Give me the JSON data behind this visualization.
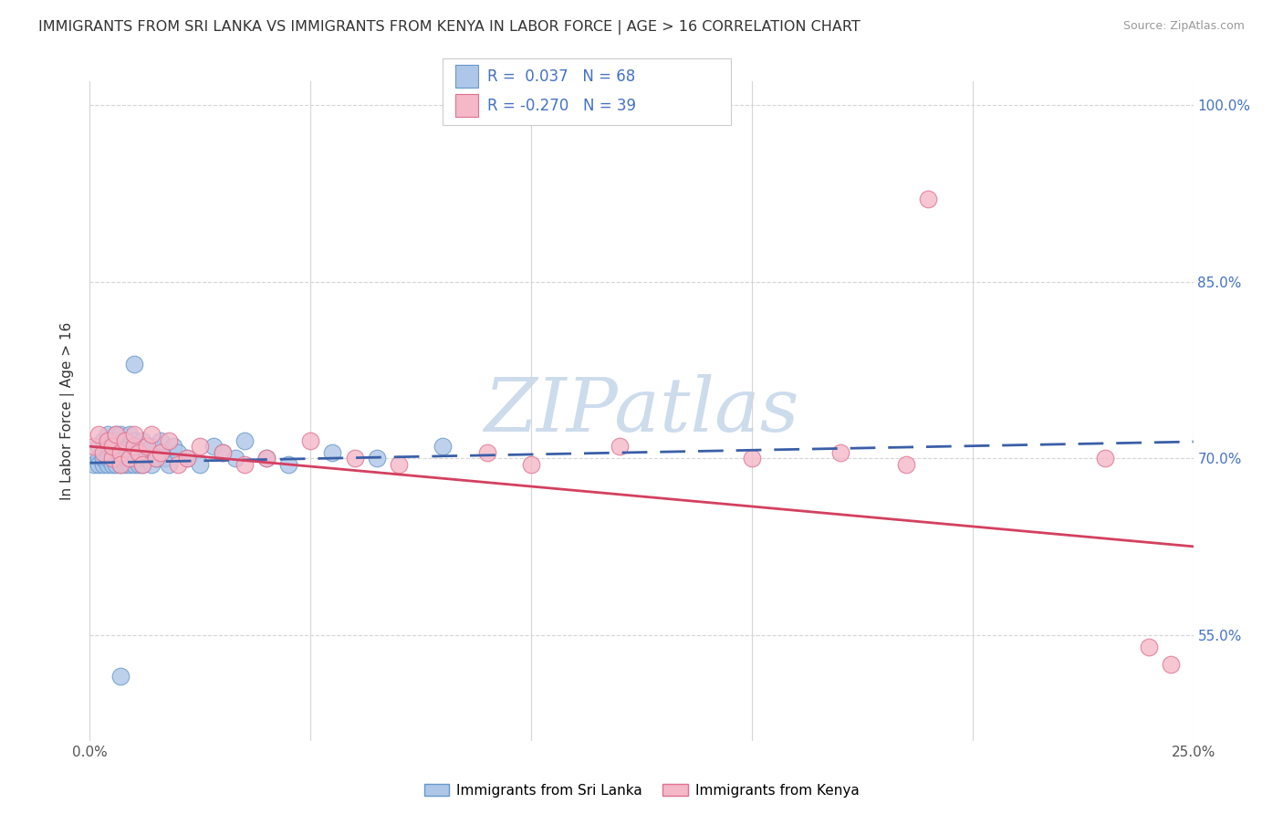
{
  "title": "IMMIGRANTS FROM SRI LANKA VS IMMIGRANTS FROM KENYA IN LABOR FORCE | AGE > 16 CORRELATION CHART",
  "source": "Source: ZipAtlas.com",
  "ylabel": "In Labor Force | Age > 16",
  "watermark": "ZIPatlas",
  "sri_lanka_R": 0.037,
  "sri_lanka_N": 68,
  "kenya_R": -0.27,
  "kenya_N": 39,
  "xlim": [
    0.0,
    0.25
  ],
  "ylim": [
    0.46,
    1.02
  ],
  "ytick_vals": [
    0.55,
    0.7,
    0.85,
    1.0
  ],
  "ytick_labels": [
    "55.0%",
    "70.0%",
    "85.0%",
    "100.0%"
  ],
  "xtick_vals": [
    0.0,
    0.05,
    0.1,
    0.15,
    0.2,
    0.25
  ],
  "xtick_labels": [
    "0.0%",
    "",
    "",
    "",
    "",
    "25.0%"
  ],
  "sri_lanka_color": "#aec6e8",
  "kenya_color": "#f4b8c8",
  "sri_lanka_edge": "#6699cc",
  "kenya_edge": "#e07090",
  "trend_sri_lanka_color": "#3a5fa8",
  "trend_kenya_color": "#d44060",
  "grid_color": "#d5d5d5",
  "background_color": "#ffffff",
  "tick_color": "#4472c4",
  "title_color": "#333333",
  "source_color": "#999999",
  "watermark_color": "#ccdcec",
  "legend_edge_color": "#cccccc",
  "legend_bg": "#ffffff",
  "sl_legend_label": "Immigrants from Sri Lanka",
  "ke_legend_label": "Immigrants from Kenya",
  "sri_lanka_x": [
    0.001,
    0.002,
    0.002,
    0.002,
    0.003,
    0.003,
    0.003,
    0.003,
    0.004,
    0.004,
    0.004,
    0.004,
    0.004,
    0.005,
    0.005,
    0.005,
    0.005,
    0.006,
    0.006,
    0.006,
    0.006,
    0.006,
    0.007,
    0.007,
    0.007,
    0.007,
    0.007,
    0.008,
    0.008,
    0.008,
    0.008,
    0.009,
    0.009,
    0.009,
    0.009,
    0.01,
    0.01,
    0.01,
    0.01,
    0.011,
    0.011,
    0.011,
    0.012,
    0.012,
    0.012,
    0.013,
    0.013,
    0.014,
    0.014,
    0.015,
    0.016,
    0.017,
    0.018,
    0.019,
    0.02,
    0.022,
    0.025,
    0.028,
    0.03,
    0.033,
    0.035,
    0.04,
    0.045,
    0.055,
    0.065,
    0.08,
    0.01,
    0.007
  ],
  "sri_lanka_y": [
    0.695,
    0.7,
    0.71,
    0.695,
    0.705,
    0.715,
    0.695,
    0.7,
    0.72,
    0.705,
    0.695,
    0.71,
    0.7,
    0.715,
    0.7,
    0.695,
    0.705,
    0.72,
    0.71,
    0.695,
    0.7,
    0.715,
    0.705,
    0.695,
    0.72,
    0.7,
    0.71,
    0.695,
    0.715,
    0.7,
    0.705,
    0.71,
    0.695,
    0.72,
    0.7,
    0.705,
    0.695,
    0.715,
    0.7,
    0.71,
    0.695,
    0.705,
    0.7,
    0.715,
    0.695,
    0.705,
    0.7,
    0.71,
    0.695,
    0.7,
    0.715,
    0.7,
    0.695,
    0.71,
    0.705,
    0.7,
    0.695,
    0.71,
    0.705,
    0.7,
    0.715,
    0.7,
    0.695,
    0.705,
    0.7,
    0.71,
    0.78,
    0.515
  ],
  "kenya_x": [
    0.001,
    0.002,
    0.003,
    0.004,
    0.005,
    0.005,
    0.006,
    0.007,
    0.007,
    0.008,
    0.009,
    0.01,
    0.01,
    0.011,
    0.012,
    0.013,
    0.014,
    0.015,
    0.016,
    0.018,
    0.02,
    0.022,
    0.025,
    0.03,
    0.035,
    0.04,
    0.05,
    0.06,
    0.07,
    0.09,
    0.1,
    0.12,
    0.15,
    0.17,
    0.185,
    0.19,
    0.23,
    0.24,
    0.245
  ],
  "kenya_y": [
    0.71,
    0.72,
    0.705,
    0.715,
    0.7,
    0.71,
    0.72,
    0.705,
    0.695,
    0.715,
    0.7,
    0.71,
    0.72,
    0.705,
    0.695,
    0.71,
    0.72,
    0.7,
    0.705,
    0.715,
    0.695,
    0.7,
    0.71,
    0.705,
    0.695,
    0.7,
    0.715,
    0.7,
    0.695,
    0.705,
    0.695,
    0.71,
    0.7,
    0.705,
    0.695,
    0.92,
    0.7,
    0.54,
    0.525
  ],
  "trend_sl_x0": 0.0,
  "trend_sl_x1": 0.25,
  "trend_sl_y0": 0.696,
  "trend_sl_y1": 0.714,
  "trend_ke_x0": 0.0,
  "trend_ke_x1": 0.25,
  "trend_ke_y0": 0.71,
  "trend_ke_y1": 0.625
}
